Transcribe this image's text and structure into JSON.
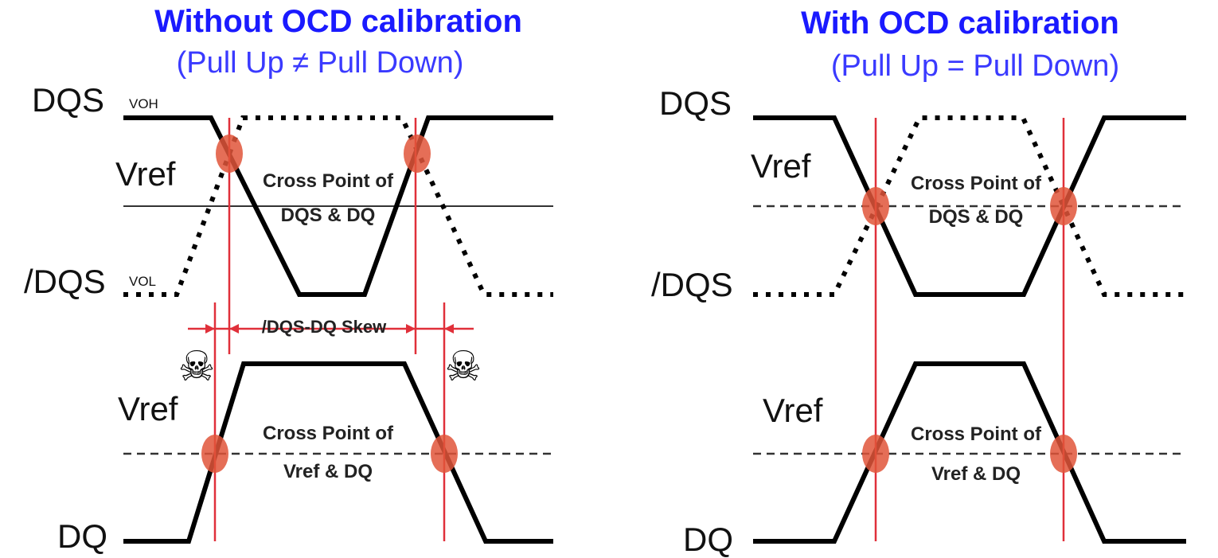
{
  "left": {
    "title": "Without OCD calibration",
    "subtitle": "(Pull Up ≠ Pull Down)",
    "labels": {
      "dqs": "DQS",
      "voh": "VOH",
      "vref_top": "Vref",
      "ndqs": "/DQS",
      "vol": "VOL",
      "vref_bottom": "Vref",
      "dq": "DQ"
    },
    "annotations": {
      "cross_dqs_line1": "Cross Point of",
      "cross_dqs_line2": "DQS & DQ",
      "skew": "/DQS-DQ Skew",
      "cross_vref_line1": "Cross Point of",
      "cross_vref_line2": "Vref & DQ"
    },
    "vref_top_style": "solid",
    "warning_icon": "skull-and-crossbones-icon"
  },
  "right": {
    "title": "With OCD calibration",
    "subtitle": "(Pull Up = Pull Down)",
    "labels": {
      "dqs": "DQS",
      "vref_top": "Vref",
      "ndqs": "/DQS",
      "vref_bottom": "Vref",
      "dq": "DQ"
    },
    "annotations": {
      "cross_dqs_line1": "Cross Point of",
      "cross_dqs_line2": "DQS & DQ",
      "cross_vref_line1": "Cross Point of",
      "cross_vref_line2": "Vref & DQ"
    },
    "vref_top_style": "dashed"
  },
  "colors": {
    "title": "#1a1aff",
    "subtitle": "#3a3aff",
    "signal": "#000000",
    "marker_line": "#e0303a",
    "cross_point": "#e0553a"
  }
}
